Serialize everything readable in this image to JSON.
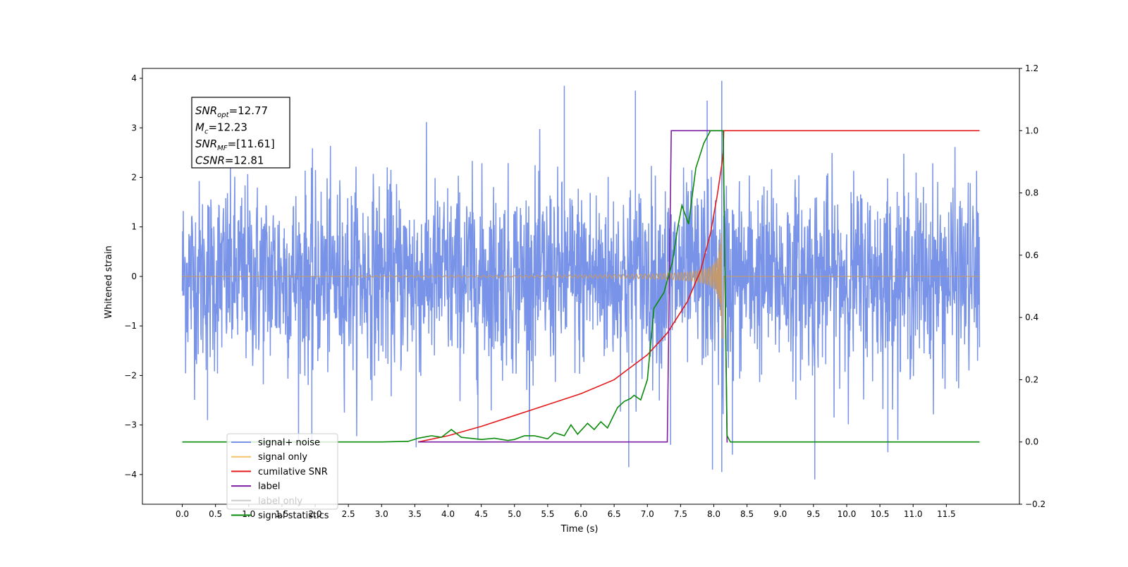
{
  "chart_data": {
    "type": "line",
    "xlabel": "Time (s)",
    "ylabel": "Whitened strain",
    "xlim": [
      -0.6,
      12.6
    ],
    "ylim": [
      -4.6,
      4.2
    ],
    "y2lim": [
      -0.2,
      1.2
    ],
    "x_ticks": [
      "0.0",
      "0.5",
      "1.0",
      "1.5",
      "2.0",
      "2.5",
      "3.0",
      "3.5",
      "4.0",
      "4.5",
      "5.0",
      "5.5",
      "6.0",
      "6.5",
      "7.0",
      "7.5",
      "8.0",
      "8.5",
      "9.0",
      "9.5",
      "10.0",
      "10.5",
      "11.0",
      "11.5"
    ],
    "y_ticks": [
      "−4",
      "−3",
      "−2",
      "−1",
      "0",
      "1",
      "2",
      "3",
      "4"
    ],
    "y2_ticks": [
      "−0.2",
      "0.0",
      "0.2",
      "0.4",
      "0.6",
      "0.8",
      "1.0",
      "1.2"
    ],
    "legend_position": "lower-left",
    "annotation": {
      "lines": [
        {
          "sym": "SNR",
          "sub": "opt",
          "val": "=12.77"
        },
        {
          "sym": "M",
          "sub": "c",
          "val": "=12.23"
        },
        {
          "sym": "SNR",
          "sub": "MF",
          "val": "=[11.61]"
        },
        {
          "sym": "CSNR",
          "sub": "",
          "val": "=12.81"
        }
      ]
    },
    "series": [
      {
        "name": "signal+ noise",
        "color": "#7893e8",
        "axis": "left",
        "x_range": [
          0.0,
          12.0
        ],
        "noise_sigma": 1.0,
        "spikes": [
          [
            0.38,
            -2.9
          ],
          [
            1.95,
            -3.3
          ],
          [
            3.52,
            -3.45
          ],
          [
            4.45,
            -3.3
          ],
          [
            5.75,
            3.85
          ],
          [
            6.72,
            -3.85
          ],
          [
            6.82,
            3.75
          ],
          [
            7.35,
            -3.4
          ],
          [
            7.9,
            3.55
          ],
          [
            7.98,
            -3.9
          ],
          [
            8.12,
            3.95
          ],
          [
            8.12,
            -3.95
          ],
          [
            8.28,
            -3.6
          ],
          [
            9.52,
            -4.1
          ],
          [
            10.62,
            -3.55
          ]
        ]
      },
      {
        "name": "signal only",
        "color": "#f4b96b",
        "axis": "left",
        "chirp_start": 2.5,
        "merger": 8.14
      },
      {
        "name": "cumilative SNR",
        "color": "#e31a1c",
        "axis": "right",
        "points": [
          [
            3.55,
            0.0
          ],
          [
            4.0,
            0.02
          ],
          [
            4.5,
            0.05
          ],
          [
            5.0,
            0.085
          ],
          [
            5.5,
            0.12
          ],
          [
            6.0,
            0.155
          ],
          [
            6.5,
            0.2
          ],
          [
            7.0,
            0.28
          ],
          [
            7.3,
            0.35
          ],
          [
            7.6,
            0.45
          ],
          [
            7.8,
            0.55
          ],
          [
            7.95,
            0.67
          ],
          [
            8.05,
            0.79
          ],
          [
            8.12,
            0.89
          ],
          [
            8.14,
            0.93
          ],
          [
            8.15,
            1.0
          ],
          [
            12.0,
            1.0
          ]
        ]
      },
      {
        "name": "label",
        "color": "#7b1fa2",
        "axis": "right",
        "points": [
          [
            3.55,
            0.0
          ],
          [
            7.3,
            0.0
          ],
          [
            7.36,
            1.0
          ],
          [
            8.14,
            1.0
          ],
          [
            8.2,
            0.0
          ],
          [
            8.21,
            0.0
          ]
        ]
      },
      {
        "name": "label only",
        "color": "#cccccc",
        "axis": "right",
        "points": []
      },
      {
        "name": "signal statistics",
        "color": "#0a8a0a",
        "axis": "right",
        "points": [
          [
            0.0,
            0.0
          ],
          [
            3.0,
            0.0
          ],
          [
            3.4,
            0.002
          ],
          [
            3.55,
            0.012
          ],
          [
            3.75,
            0.02
          ],
          [
            3.9,
            0.015
          ],
          [
            4.05,
            0.04
          ],
          [
            4.2,
            0.015
          ],
          [
            4.5,
            0.008
          ],
          [
            4.7,
            0.012
          ],
          [
            4.9,
            0.005
          ],
          [
            5.0,
            0.008
          ],
          [
            5.15,
            0.02
          ],
          [
            5.3,
            0.02
          ],
          [
            5.5,
            0.01
          ],
          [
            5.6,
            0.03
          ],
          [
            5.75,
            0.02
          ],
          [
            5.85,
            0.055
          ],
          [
            5.95,
            0.025
          ],
          [
            6.1,
            0.06
          ],
          [
            6.2,
            0.04
          ],
          [
            6.3,
            0.065
          ],
          [
            6.4,
            0.045
          ],
          [
            6.55,
            0.11
          ],
          [
            6.65,
            0.13
          ],
          [
            6.75,
            0.14
          ],
          [
            6.8,
            0.15
          ],
          [
            6.9,
            0.135
          ],
          [
            7.0,
            0.2
          ],
          [
            7.1,
            0.43
          ],
          [
            7.25,
            0.48
          ],
          [
            7.38,
            0.58
          ],
          [
            7.45,
            0.68
          ],
          [
            7.52,
            0.76
          ],
          [
            7.62,
            0.7
          ],
          [
            7.73,
            0.88
          ],
          [
            7.85,
            0.96
          ],
          [
            7.95,
            1.0
          ],
          [
            8.05,
            1.0
          ],
          [
            8.14,
            1.0
          ],
          [
            8.2,
            0.02
          ],
          [
            8.25,
            0.0
          ],
          [
            12.0,
            0.0
          ]
        ]
      }
    ]
  }
}
